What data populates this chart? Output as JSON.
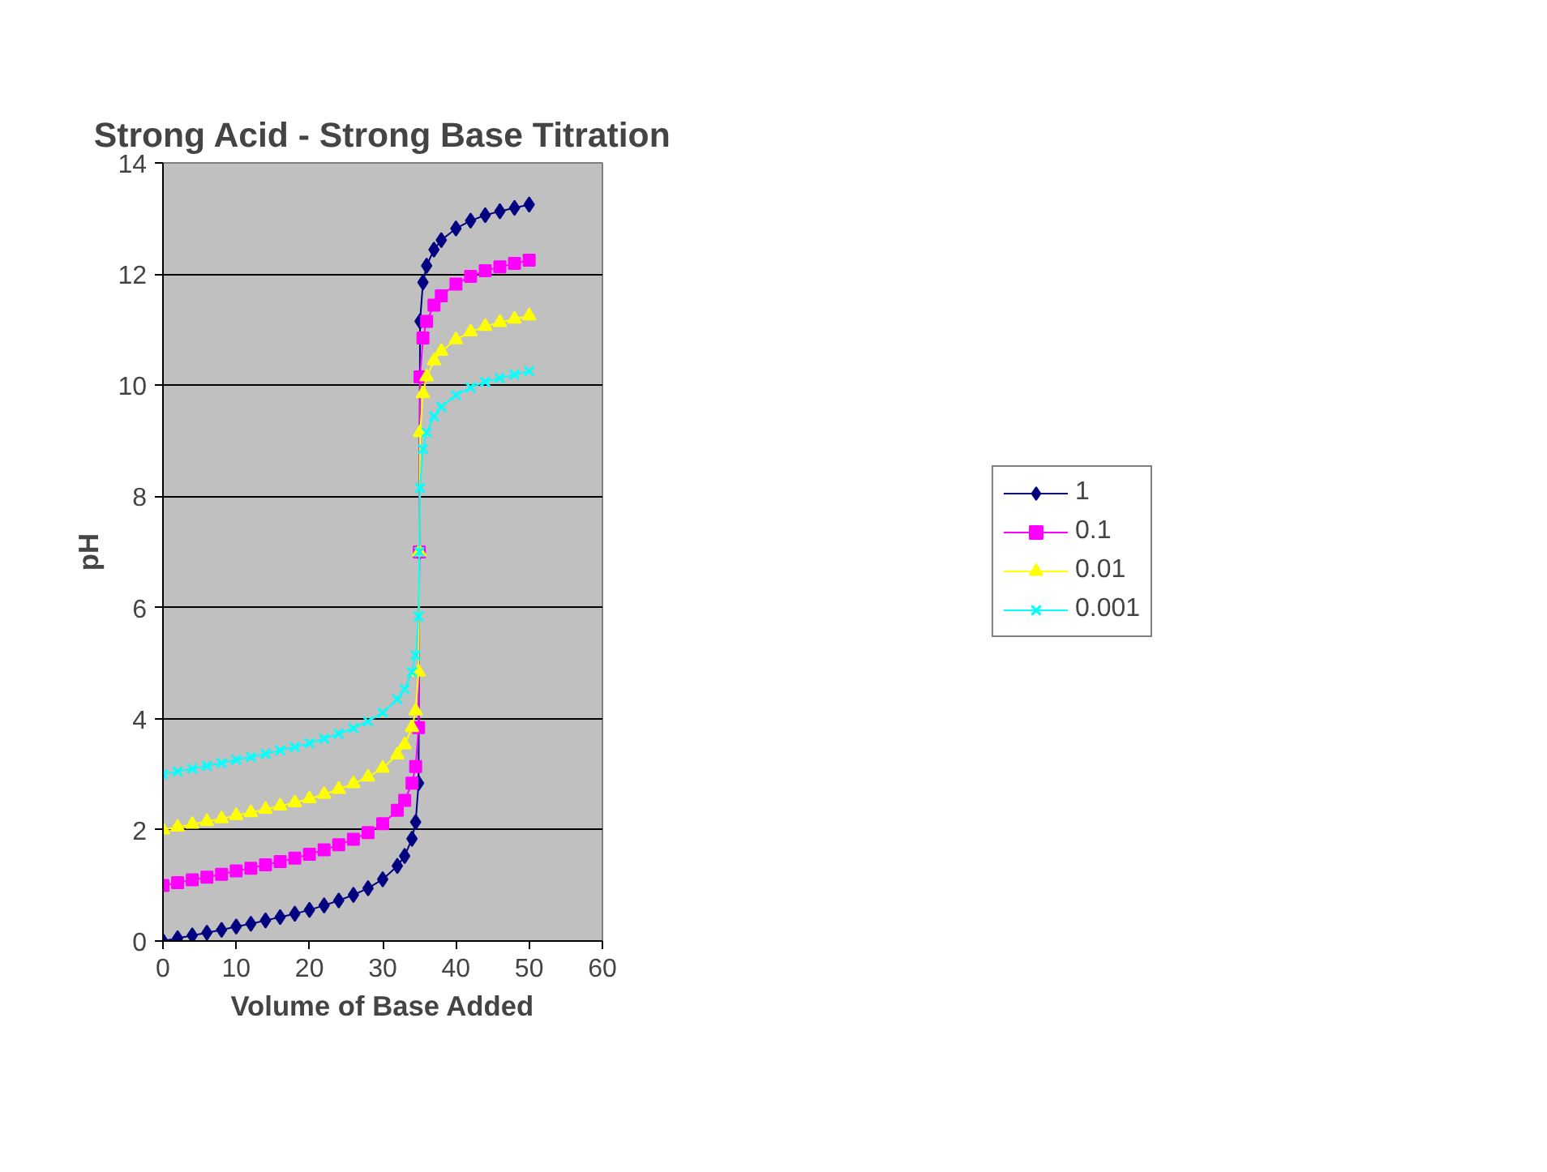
{
  "chart_data": {
    "type": "line",
    "title": "Strong Acid - Strong Base Titration",
    "xlabel": "Volume of Base Added",
    "ylabel": "pH",
    "x": [
      0,
      2,
      4,
      6,
      8,
      10,
      12,
      14,
      16,
      18,
      20,
      22,
      24,
      26,
      28,
      30,
      32,
      33,
      34,
      34.5,
      34.9,
      35,
      35.1,
      35.5,
      36,
      37,
      38,
      40,
      42,
      44,
      46,
      48,
      50
    ],
    "series": [
      {
        "name": "1",
        "color": "#000080",
        "marker": "diamond",
        "values": [
          0,
          0.05,
          0.1,
          0.15,
          0.2,
          0.26,
          0.31,
          0.37,
          0.43,
          0.49,
          0.56,
          0.64,
          0.73,
          0.83,
          0.95,
          1.11,
          1.35,
          1.53,
          1.84,
          2.14,
          2.84,
          7,
          11.15,
          11.85,
          12.15,
          12.44,
          12.61,
          12.82,
          12.96,
          13.06,
          13.13,
          13.19,
          13.25
        ]
      },
      {
        "name": "0.1",
        "color": "#ff00ff",
        "marker": "square",
        "values": [
          1,
          1.05,
          1.1,
          1.15,
          1.2,
          1.26,
          1.31,
          1.37,
          1.43,
          1.49,
          1.56,
          1.64,
          1.73,
          1.83,
          1.95,
          2.11,
          2.35,
          2.53,
          2.84,
          3.14,
          3.84,
          7,
          10.15,
          10.85,
          11.15,
          11.44,
          11.61,
          11.82,
          11.96,
          12.06,
          12.13,
          12.19,
          12.25
        ]
      },
      {
        "name": "0.01",
        "color": "#ffff00",
        "marker": "triangle",
        "values": [
          2,
          2.05,
          2.1,
          2.15,
          2.2,
          2.26,
          2.31,
          2.37,
          2.43,
          2.49,
          2.56,
          2.64,
          2.73,
          2.83,
          2.95,
          3.11,
          3.35,
          3.53,
          3.84,
          4.14,
          4.84,
          7,
          9.15,
          9.85,
          10.15,
          10.44,
          10.61,
          10.82,
          10.96,
          11.06,
          11.13,
          11.19,
          11.25
        ]
      },
      {
        "name": "0.001",
        "color": "#00ffff",
        "marker": "cross",
        "values": [
          3,
          3.05,
          3.1,
          3.15,
          3.2,
          3.26,
          3.31,
          3.37,
          3.43,
          3.49,
          3.56,
          3.64,
          3.73,
          3.83,
          3.95,
          4.11,
          4.35,
          4.53,
          4.84,
          5.14,
          5.84,
          7,
          8.15,
          8.85,
          9.15,
          9.44,
          9.61,
          9.82,
          9.96,
          10.06,
          10.13,
          10.19,
          10.25
        ]
      }
    ],
    "xlim": [
      0,
      60
    ],
    "xticks": [
      0,
      10,
      20,
      30,
      40,
      50,
      60
    ],
    "ylim": [
      0,
      14
    ],
    "yticks": [
      0,
      2,
      4,
      6,
      8,
      10,
      12,
      14
    ],
    "grid": "y",
    "legend": "right",
    "line_style": "solid"
  }
}
